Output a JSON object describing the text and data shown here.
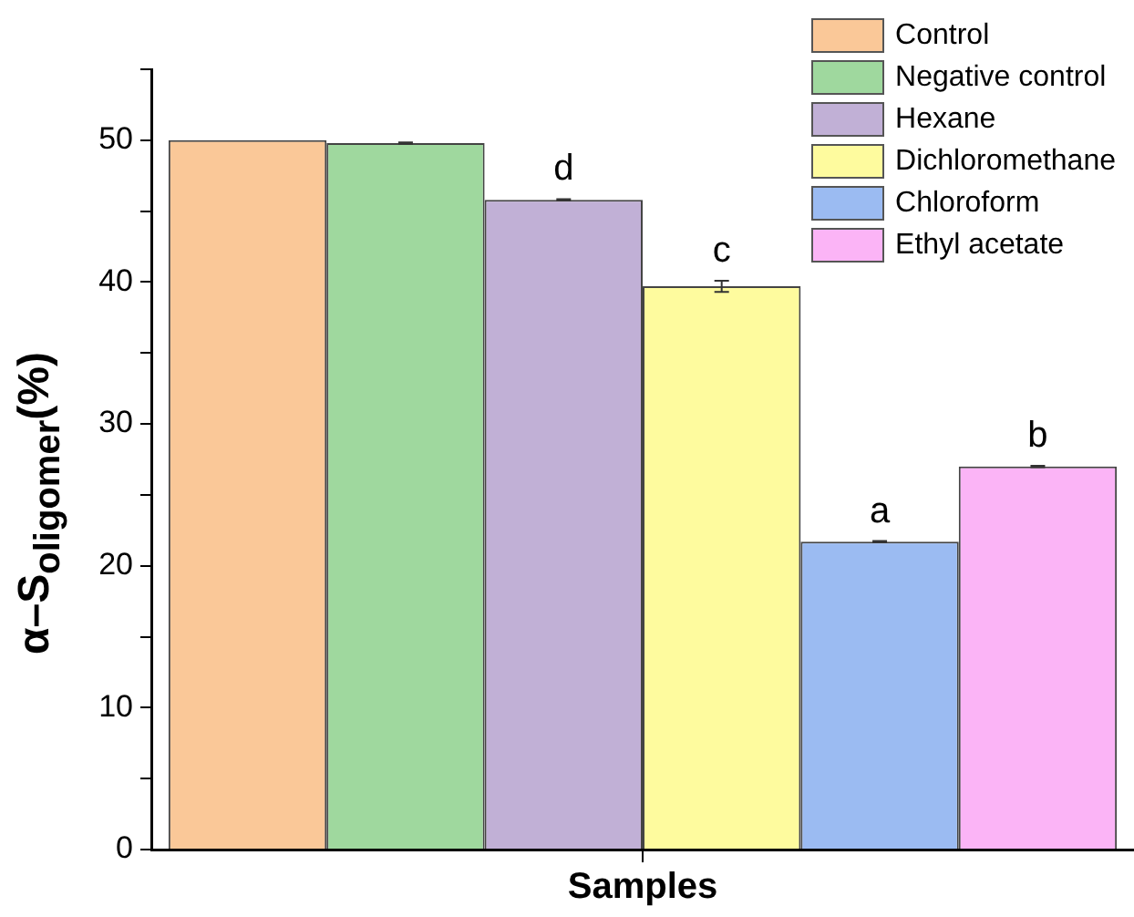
{
  "chart_data": {
    "type": "bar",
    "xlabel": "Samples",
    "ylabel": "α–S$_{oligomer}$(%)",
    "categories": [
      null
    ],
    "series": [
      {
        "name": "Control",
        "color": "#fac898",
        "values": [
          50.0
        ]
      },
      {
        "name": "Negative control",
        "color": "#9fd89e",
        "values": [
          49.8
        ],
        "errors": [
          0.05
        ]
      },
      {
        "name": "Hexane",
        "color": "#c1b0d6",
        "values": [
          45.8
        ],
        "errors": [
          0.05
        ],
        "value_labels": [
          "d"
        ]
      },
      {
        "name": "Dichloromethane",
        "color": "#fefb9e",
        "values": [
          39.7
        ],
        "errors": [
          0.4
        ],
        "value_labels": [
          "c"
        ]
      },
      {
        "name": "Chloroform",
        "color": "#9bbbf2",
        "values": [
          21.7
        ],
        "errors": [
          0.05
        ],
        "value_labels": [
          "a"
        ]
      },
      {
        "name": "Ethyl acetate",
        "color": "#fbb4f6",
        "values": [
          27.0
        ],
        "errors": [
          0.05
        ],
        "value_labels": [
          "b"
        ]
      }
    ],
    "ylim": [
      0,
      55
    ],
    "yticks": [
      0,
      {
        "value": 5,
        "label": null
      },
      10,
      {
        "value": 15,
        "label": null
      },
      20,
      {
        "value": 25,
        "label": null
      },
      30,
      {
        "value": 35,
        "label": null
      },
      40,
      {
        "value": 45,
        "label": null
      },
      50,
      {
        "value": 55,
        "label": null
      }
    ],
    "grid": false,
    "legend": "top right",
    "tick_labels": "y"
  }
}
